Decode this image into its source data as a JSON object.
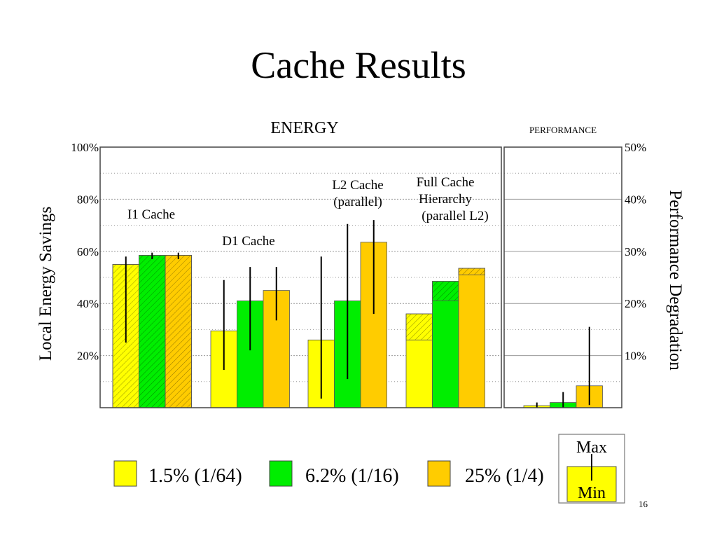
{
  "slide": {
    "title": "Cache Results",
    "page_number": "16"
  },
  "colors": {
    "yellow": "#ffff00",
    "green": "#00ee00",
    "orange": "#ffcc00",
    "grid": "#999999"
  },
  "chart_data": [
    {
      "type": "bar",
      "title": "ENERGY",
      "ylabel": "Local Energy Savings",
      "ylim": [
        0,
        100
      ],
      "yticks": [
        "20%",
        "40%",
        "60%",
        "80%",
        "100%"
      ],
      "grid": true,
      "groups": [
        {
          "label": "I1 Cache",
          "bars": [
            {
              "series": "1.5% (1/64)",
              "value": 55,
              "min": 25,
              "max": 58,
              "hatched_from": 0
            },
            {
              "series": "6.2% (1/16)",
              "value": 58.5,
              "min": 57,
              "max": 59.5,
              "hatched_from": 0
            },
            {
              "series": "25% (1/4)",
              "value": 58.5,
              "min": 57,
              "max": 59.5,
              "hatched_from": 0
            }
          ]
        },
        {
          "label": "D1 Cache",
          "bars": [
            {
              "series": "1.5% (1/64)",
              "value": 29.5,
              "min": 14.5,
              "max": 49,
              "hatched_from": null
            },
            {
              "series": "6.2% (1/16)",
              "value": 41,
              "min": 22,
              "max": 54,
              "hatched_from": null
            },
            {
              "series": "25% (1/4)",
              "value": 45,
              "min": 33.5,
              "max": 54,
              "hatched_from": null
            }
          ]
        },
        {
          "label": "L2 Cache\n(parallel)",
          "bars": [
            {
              "series": "1.5% (1/64)",
              "value": 26,
              "min": 3.5,
              "max": 58,
              "hatched_from": null
            },
            {
              "series": "6.2% (1/16)",
              "value": 41,
              "min": 11,
              "max": 70.5,
              "hatched_from": null
            },
            {
              "series": "25% (1/4)",
              "value": 63.5,
              "min": 36,
              "max": 72,
              "hatched_from": null
            }
          ]
        },
        {
          "label": "Full Cache\nHierarchy\n(parallel L2)",
          "bars": [
            {
              "series": "1.5% (1/64)",
              "value": 36,
              "min": null,
              "max": null,
              "hatched_from": 26
            },
            {
              "series": "6.2% (1/16)",
              "value": 48.5,
              "min": null,
              "max": null,
              "hatched_from": 41
            },
            {
              "series": "25% (1/4)",
              "value": 53.5,
              "min": null,
              "max": null,
              "hatched_from": 51
            }
          ]
        }
      ]
    },
    {
      "type": "bar",
      "title": "PERFORMANCE",
      "ylabel": "Performance Degradation",
      "ylim": [
        0,
        50
      ],
      "yticks": [
        "10%",
        "20%",
        "30%",
        "40%",
        "50%"
      ],
      "grid": true,
      "bars": [
        {
          "series": "1.5% (1/64)",
          "value": 0.4,
          "min": 0,
          "max": 1
        },
        {
          "series": "6.2% (1/16)",
          "value": 1,
          "min": 0,
          "max": 3
        },
        {
          "series": "25% (1/4)",
          "value": 4.2,
          "min": 0.5,
          "max": 15.5
        }
      ]
    }
  ],
  "legend": {
    "items": [
      {
        "label": "1.5% (1/64)",
        "color": "#ffff00"
      },
      {
        "label": "6.2% (1/16)",
        "color": "#00ee00"
      },
      {
        "label": "25% (1/4)",
        "color": "#ffcc00"
      }
    ],
    "range_key": {
      "max_label": "Max",
      "min_label": "Min"
    }
  }
}
